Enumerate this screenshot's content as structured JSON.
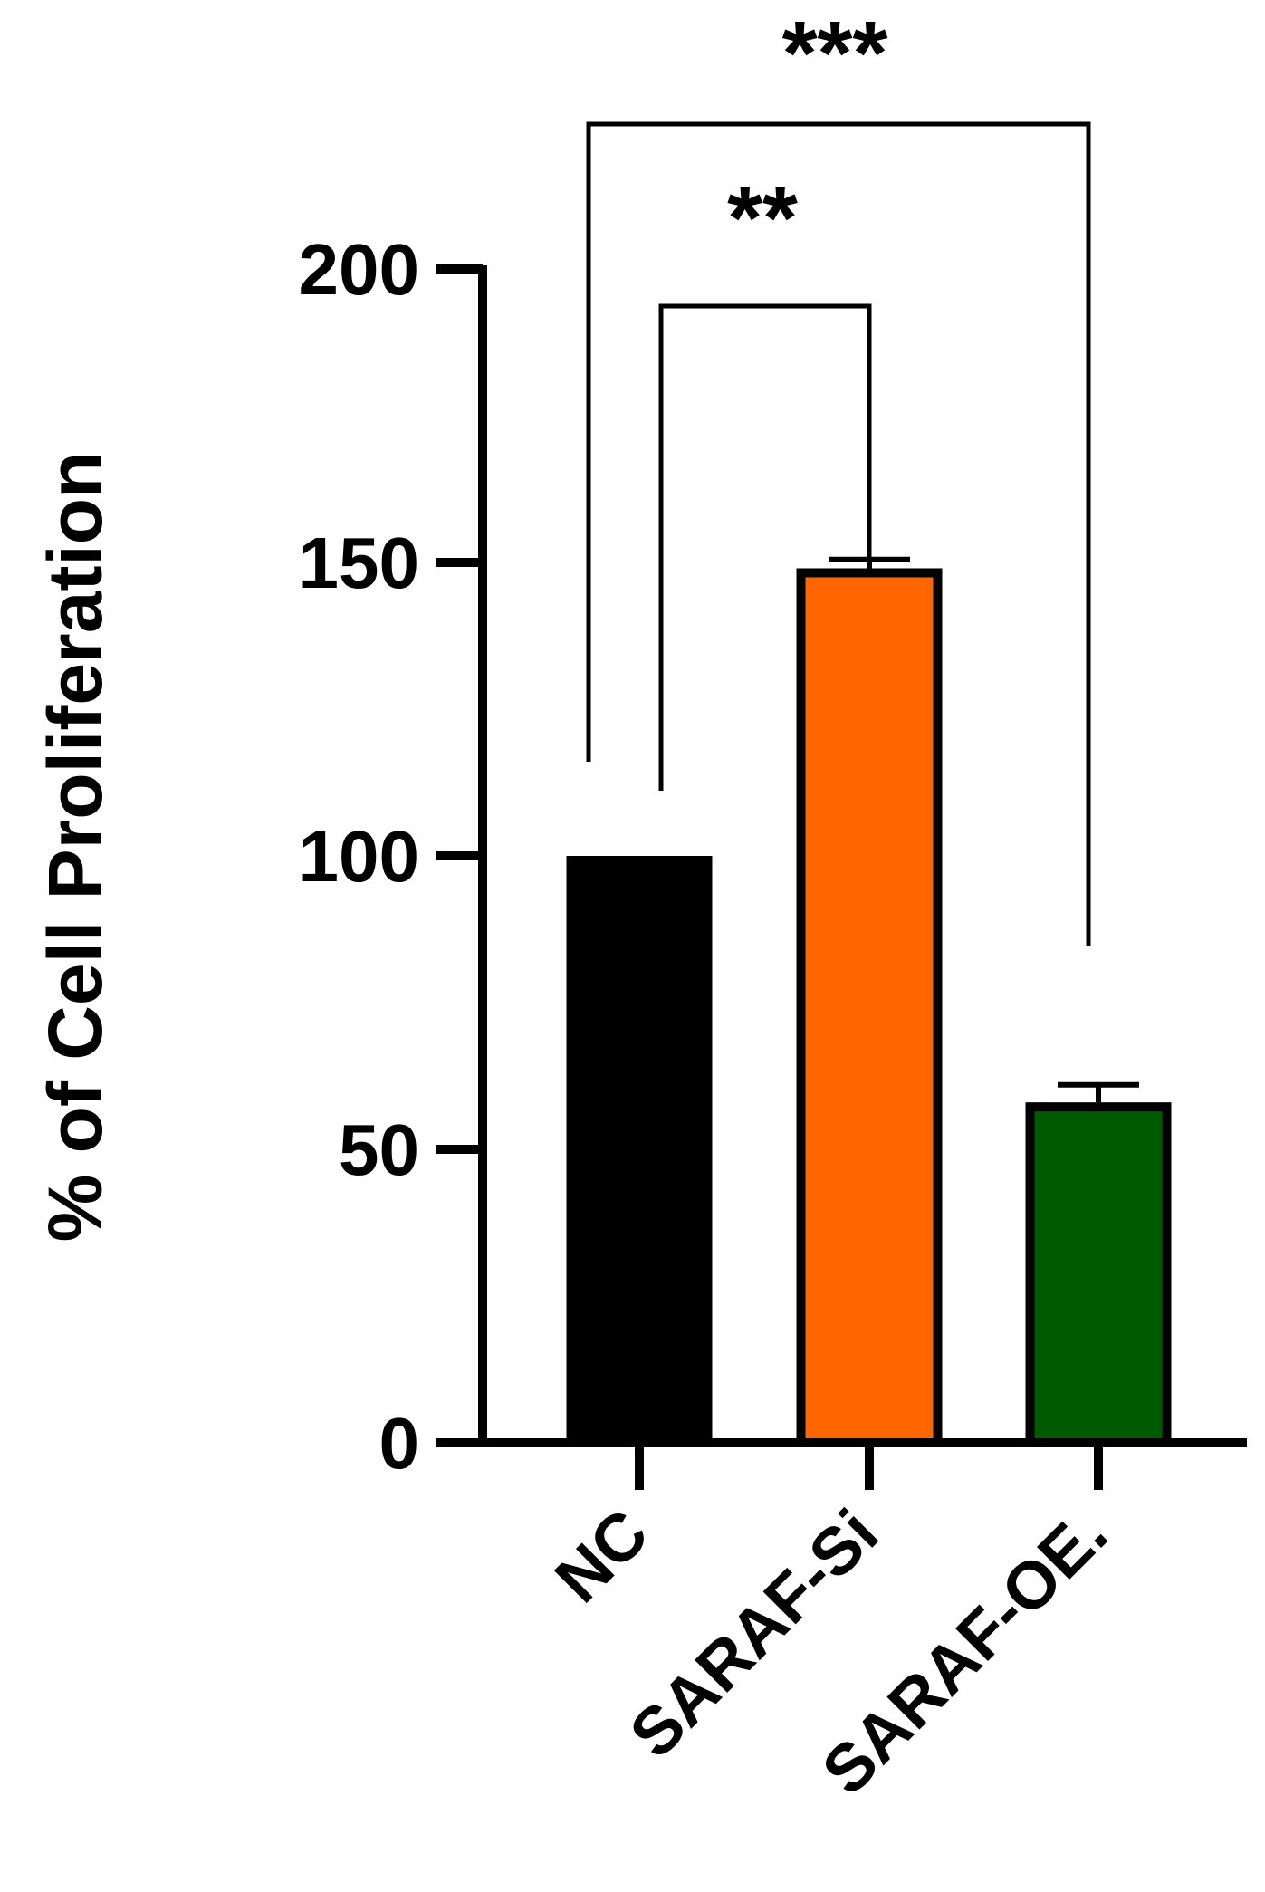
{
  "chart_data": {
    "type": "bar",
    "title": "",
    "xlabel": "",
    "ylabel": "% of Cell Proliferation",
    "categories": [
      "NC",
      "SARAF-Si",
      "SARAF-OE."
    ],
    "values": [
      100,
      149,
      58
    ],
    "errors": [
      0,
      1.5,
      3
    ],
    "colors": [
      "#000000",
      "#ff6600",
      "#005a00"
    ],
    "ylim": [
      0,
      200
    ],
    "yticks": [
      "0",
      "50",
      "100",
      "150",
      "200"
    ],
    "grid": false,
    "significance": [
      {
        "from": "NC",
        "to": "SARAF-Si",
        "label": "**"
      },
      {
        "from": "NC",
        "to": "SARAF-OE.",
        "label": "***"
      }
    ]
  }
}
